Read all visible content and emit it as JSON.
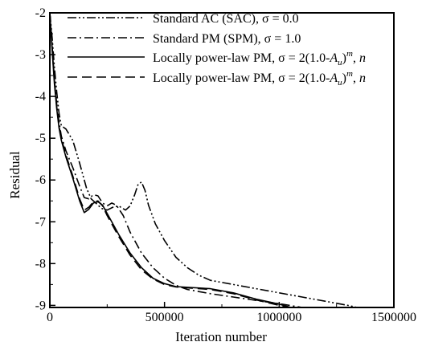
{
  "chart_data": {
    "type": "line",
    "xlabel": "Iteration number",
    "ylabel": "Residual",
    "xlim": [
      0,
      1500000
    ],
    "ylim": [
      -9.05,
      -2
    ],
    "x_ticks": [
      0,
      500000,
      1000000,
      1500000
    ],
    "x_tick_labels": [
      "0",
      "500000",
      "1000000",
      "1500000"
    ],
    "y_ticks": [
      -2,
      -3,
      -4,
      -5,
      -6,
      -7,
      -8,
      -9
    ],
    "y_tick_labels": [
      "-2",
      "-3",
      "-4",
      "-5",
      "-6",
      "-7",
      "-8",
      "-9"
    ],
    "grid": false,
    "legend_position": "top-right",
    "series": [
      {
        "name": "Standard AC (SAC), σ = 0.0",
        "style": "dash-dot-dot",
        "points": [
          [
            0,
            -2.0
          ],
          [
            10000,
            -2.6
          ],
          [
            20000,
            -3.3
          ],
          [
            30000,
            -3.9
          ],
          [
            40000,
            -4.4
          ],
          [
            50000,
            -4.7
          ],
          [
            70000,
            -4.78
          ],
          [
            100000,
            -5.05
          ],
          [
            130000,
            -5.6
          ],
          [
            160000,
            -6.2
          ],
          [
            180000,
            -6.45
          ],
          [
            200000,
            -6.55
          ],
          [
            225000,
            -6.68
          ],
          [
            250000,
            -6.72
          ],
          [
            275000,
            -6.65
          ],
          [
            300000,
            -6.62
          ],
          [
            330000,
            -6.72
          ],
          [
            350000,
            -6.62
          ],
          [
            370000,
            -6.35
          ],
          [
            385000,
            -6.1
          ],
          [
            400000,
            -6.05
          ],
          [
            415000,
            -6.25
          ],
          [
            430000,
            -6.6
          ],
          [
            460000,
            -7.05
          ],
          [
            500000,
            -7.45
          ],
          [
            550000,
            -7.85
          ],
          [
            600000,
            -8.1
          ],
          [
            650000,
            -8.28
          ],
          [
            700000,
            -8.4
          ],
          [
            800000,
            -8.5
          ],
          [
            900000,
            -8.6
          ],
          [
            1000000,
            -8.7
          ],
          [
            1100000,
            -8.8
          ],
          [
            1200000,
            -8.9
          ],
          [
            1300000,
            -9.0
          ],
          [
            1340000,
            -9.05
          ]
        ]
      },
      {
        "name": "Standard PM (SPM), σ = 1.0",
        "style": "dash-dot",
        "points": [
          [
            0,
            -2.0
          ],
          [
            10000,
            -2.8
          ],
          [
            20000,
            -3.6
          ],
          [
            30000,
            -4.2
          ],
          [
            40000,
            -4.6
          ],
          [
            50000,
            -4.95
          ],
          [
            70000,
            -5.3
          ],
          [
            100000,
            -5.7
          ],
          [
            130000,
            -6.15
          ],
          [
            150000,
            -6.42
          ],
          [
            170000,
            -6.45
          ],
          [
            190000,
            -6.35
          ],
          [
            210000,
            -6.38
          ],
          [
            230000,
            -6.55
          ],
          [
            250000,
            -6.62
          ],
          [
            270000,
            -6.55
          ],
          [
            290000,
            -6.6
          ],
          [
            320000,
            -6.85
          ],
          [
            350000,
            -7.25
          ],
          [
            400000,
            -7.75
          ],
          [
            450000,
            -8.1
          ],
          [
            500000,
            -8.35
          ],
          [
            550000,
            -8.52
          ],
          [
            600000,
            -8.62
          ],
          [
            700000,
            -8.72
          ],
          [
            800000,
            -8.8
          ],
          [
            900000,
            -8.88
          ],
          [
            1000000,
            -8.96
          ],
          [
            1100000,
            -9.05
          ]
        ]
      },
      {
        "name": "Locally power-law PM, σ = 2(1.0-Au)m, n",
        "style": "solid",
        "points": [
          [
            0,
            -2.0
          ],
          [
            10000,
            -2.9
          ],
          [
            20000,
            -3.7
          ],
          [
            30000,
            -4.3
          ],
          [
            40000,
            -4.75
          ],
          [
            50000,
            -5.05
          ],
          [
            70000,
            -5.45
          ],
          [
            100000,
            -5.95
          ],
          [
            130000,
            -6.5
          ],
          [
            150000,
            -6.78
          ],
          [
            170000,
            -6.7
          ],
          [
            190000,
            -6.55
          ],
          [
            210000,
            -6.52
          ],
          [
            230000,
            -6.6
          ],
          [
            250000,
            -6.8
          ],
          [
            300000,
            -7.3
          ],
          [
            350000,
            -7.75
          ],
          [
            400000,
            -8.1
          ],
          [
            450000,
            -8.35
          ],
          [
            500000,
            -8.48
          ],
          [
            550000,
            -8.55
          ],
          [
            700000,
            -8.6
          ],
          [
            800000,
            -8.7
          ],
          [
            900000,
            -8.85
          ],
          [
            1000000,
            -8.97
          ],
          [
            1050000,
            -9.05
          ]
        ]
      },
      {
        "name": "Locally power-law PM, σ = 2(1.0-Au)m, n",
        "style": "dashed",
        "points": [
          [
            0,
            -2.0
          ],
          [
            10000,
            -2.85
          ],
          [
            20000,
            -3.65
          ],
          [
            30000,
            -4.25
          ],
          [
            40000,
            -4.7
          ],
          [
            50000,
            -5.0
          ],
          [
            70000,
            -5.4
          ],
          [
            100000,
            -5.9
          ],
          [
            130000,
            -6.45
          ],
          [
            150000,
            -6.72
          ],
          [
            170000,
            -6.65
          ],
          [
            190000,
            -6.52
          ],
          [
            210000,
            -6.5
          ],
          [
            230000,
            -6.62
          ],
          [
            250000,
            -6.85
          ],
          [
            300000,
            -7.35
          ],
          [
            350000,
            -7.8
          ],
          [
            400000,
            -8.15
          ],
          [
            450000,
            -8.37
          ],
          [
            500000,
            -8.5
          ],
          [
            550000,
            -8.56
          ],
          [
            700000,
            -8.62
          ],
          [
            800000,
            -8.72
          ],
          [
            900000,
            -8.87
          ],
          [
            1000000,
            -9.0
          ],
          [
            1040000,
            -9.05
          ]
        ]
      }
    ],
    "legend": [
      {
        "prefix": "Standard AC (SAC), σ = 0.0",
        "style": "dash-dot-dot"
      },
      {
        "prefix": "Standard PM (SPM), σ = 1.0",
        "style": "dash-dot"
      },
      {
        "prefix": "Locally power-law PM, σ = 2(1.0-",
        "var": "A",
        "sub": "u",
        "mid": ")",
        "sup": "m",
        "suffix": ", ",
        "tail": "n",
        "style": "solid"
      },
      {
        "prefix": "Locally power-law PM, σ = 2(1.0-",
        "var": "A",
        "sub": "u",
        "mid": ")",
        "sup": "m",
        "suffix": ", ",
        "tail": "n",
        "style": "dashed"
      }
    ]
  }
}
